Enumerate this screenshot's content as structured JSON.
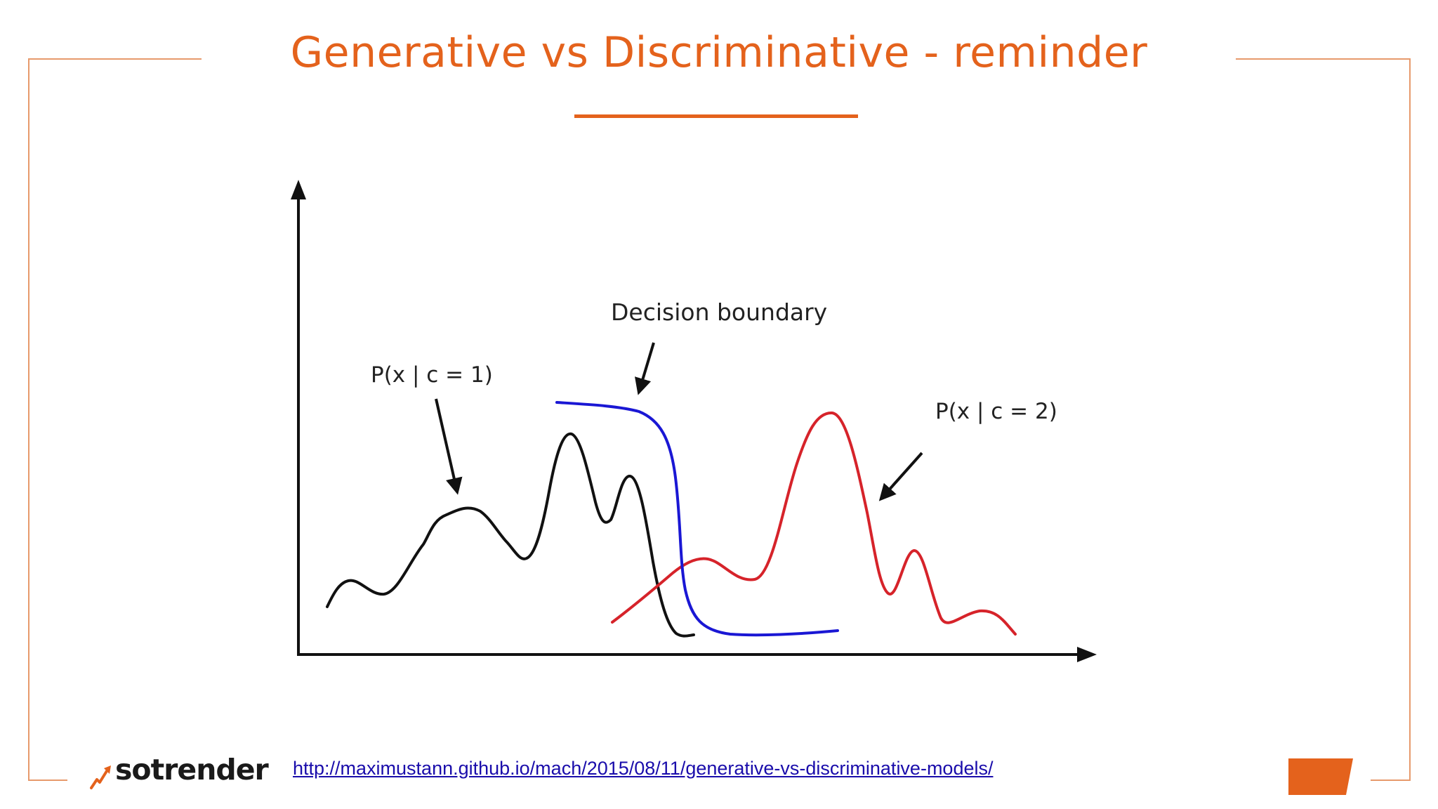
{
  "slide": {
    "title": "Generative vs Discriminative - reminder",
    "source_url": "http://maximustann.github.io/mach/2015/08/11/generative-vs-discriminative-models/",
    "logo_text": "sotrender"
  },
  "diagram": {
    "label_class1": "P(x | c = 1)",
    "label_class2": "P(x | c = 2)",
    "label_boundary": "Decision boundary"
  },
  "colors": {
    "accent": "#e4621c",
    "frame": "#e79a6c",
    "class1_curve": "#111111",
    "class2_curve": "#d6232a",
    "boundary_curve": "#1a17d4",
    "link": "#1a0dab"
  }
}
